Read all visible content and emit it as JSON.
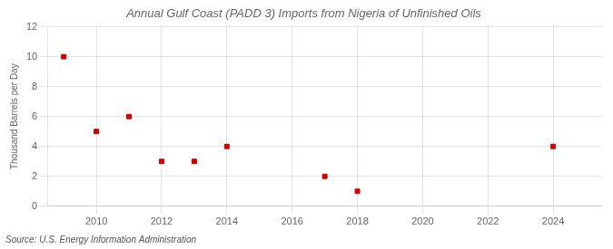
{
  "chart_data": {
    "type": "scatter",
    "title": "Annual Gulf Coast (PADD 3) Imports from Nigeria of Unfinished Oils",
    "ylabel": "Thousand Barrels per Day",
    "annotation": "Source: U.S. Energy Information Administration",
    "x": [
      2009,
      2010,
      2011,
      2012,
      2013,
      2014,
      2017,
      2018,
      2024
    ],
    "values": [
      10,
      5,
      6,
      3,
      3,
      4,
      2,
      1,
      4
    ],
    "color": "#cc0000",
    "marker": "square",
    "xlim": [
      2008.5,
      2025.5
    ],
    "xticks": [
      2010,
      2012,
      2014,
      2016,
      2018,
      2020,
      2022,
      2024
    ],
    "ylim": [
      0,
      12
    ],
    "yticks": [
      0,
      2,
      4,
      6,
      8,
      10,
      12
    ],
    "grid": true
  }
}
